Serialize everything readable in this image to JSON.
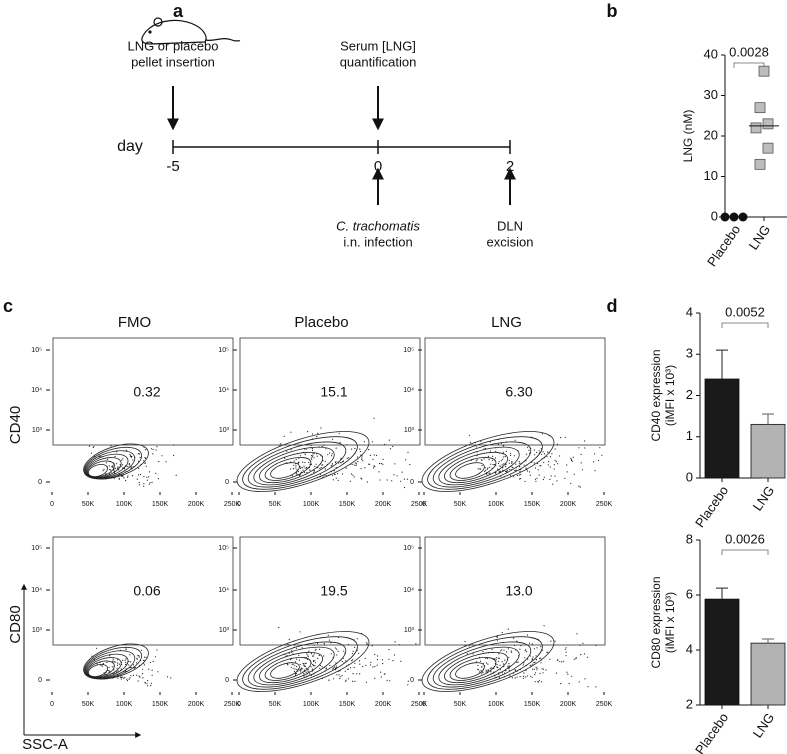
{
  "panel_labels": [
    "a",
    "b",
    "c",
    "d"
  ],
  "timeline": {
    "axis_label": "day",
    "ticks": [
      {
        "day": -5,
        "above": [
          "LNG or placebo",
          "pellet insertion"
        ]
      },
      {
        "day": 0,
        "above": [
          "Serum [LNG]",
          "quantification"
        ],
        "below": [
          "C. trachomatis",
          "i.n. infection"
        ]
      },
      {
        "day": 2,
        "below": [
          "DLN",
          "excision"
        ]
      }
    ]
  },
  "flow": {
    "columns": [
      "FMO",
      "Placebo",
      "LNG"
    ],
    "rows": [
      {
        "marker": "CD40",
        "gates": [
          "0.32",
          "15.1",
          "6.30"
        ]
      },
      {
        "marker": "CD80",
        "gates": [
          "0.06",
          "19.5",
          "13.0"
        ]
      }
    ],
    "x_axis_label": "SSC-A",
    "x_tick_labels": [
      "0",
      "50K",
      "100K",
      "150K",
      "200K",
      "250K"
    ],
    "y_tick_labels": [
      "0",
      "10³",
      "10⁴",
      "10⁵"
    ]
  },
  "chart_data": [
    {
      "type": "dot",
      "ylabel": "LNG (nM)",
      "categories": [
        "Placebo",
        "LNG"
      ],
      "points": [
        [
          0,
          0,
          0
        ],
        [
          36,
          27,
          23,
          22,
          17,
          13
        ]
      ],
      "medians": [
        0,
        22.5
      ],
      "markers": [
        "circle",
        "square"
      ],
      "colors": [
        "#111111",
        "#bdbdbd"
      ],
      "annotation": "0.0028",
      "ylim": [
        0,
        40
      ],
      "yticks": [
        0,
        10,
        20,
        30,
        40
      ]
    },
    {
      "type": "bar",
      "ylabel": [
        "CD40 expression",
        "(iMFI x 10³)"
      ],
      "categories": [
        "Placebo",
        "LNG"
      ],
      "values": [
        2.4,
        1.3
      ],
      "errors": [
        0.7,
        0.25
      ],
      "colors": [
        "#1a1a1a",
        "#b3b3b3"
      ],
      "annotation": "0.0052",
      "ylim": [
        0,
        4
      ],
      "yticks": [
        0,
        1,
        2,
        3,
        4
      ]
    },
    {
      "type": "bar",
      "ylabel": [
        "CD80 expression",
        "(iMFI x 10³)"
      ],
      "categories": [
        "Placebo",
        "LNG"
      ],
      "values": [
        5.85,
        4.25
      ],
      "errors": [
        0.4,
        0.15
      ],
      "colors": [
        "#1a1a1a",
        "#b3b3b3"
      ],
      "annotation": "0.0026",
      "ylim": [
        2,
        8
      ],
      "yticks": [
        2,
        4,
        6,
        8
      ]
    }
  ]
}
